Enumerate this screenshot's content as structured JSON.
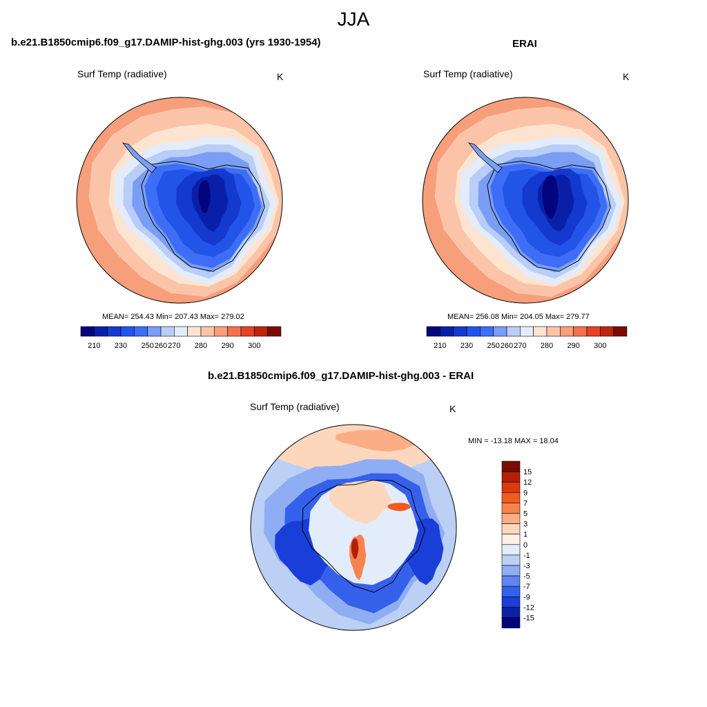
{
  "figure": {
    "season": "JJA"
  },
  "panels": {
    "model": {
      "title": "b.e21.B1850cmip6.f09_g17.DAMIP-hist-ghg.003 (yrs 1930-1954)",
      "variable": "Surf Temp (radiative)",
      "units": "K",
      "stats": "MEAN= 254.43  Min= 207.43  Max= 279.02"
    },
    "obs": {
      "title": "ERAI",
      "variable": "Surf Temp (radiative)",
      "units": "K",
      "stats": "MEAN= 256.08  Min= 204.05  Max= 279.77"
    },
    "diff": {
      "title": "b.e21.B1850cmip6.f09_g17.DAMIP-hist-ghg.003 - ERAI",
      "variable": "Surf Temp (radiative)",
      "units": "K",
      "stats": "MIN = -13.18 MAX =  18.04"
    }
  },
  "colorbars": {
    "absolute": {
      "labels": [
        "210",
        "230",
        "250",
        "260",
        "270",
        "280",
        "290",
        "300"
      ],
      "colors": [
        "#04047f",
        "#0a1fa8",
        "#1339cf",
        "#2254e8",
        "#3e6ef5",
        "#7a9ef5",
        "#b8cdf7",
        "#e3ecfb",
        "#fce4d0",
        "#fbc4a8",
        "#f79e7b",
        "#f2714e",
        "#e34324",
        "#bd2410",
        "#7c0a04"
      ]
    },
    "difference": {
      "labels": [
        "15",
        "12",
        "9",
        "7",
        "5",
        "3",
        "1",
        "0",
        "-1",
        "-3",
        "-5",
        "-7",
        "-9",
        "-12",
        "-15"
      ],
      "colors": [
        "#7c0a04",
        "#b32008",
        "#db3a10",
        "#f25a1e",
        "#f7844c",
        "#fbad85",
        "#fdd7bd",
        "#fdf0e6",
        "#e3ecfb",
        "#bccff5",
        "#8fadf2",
        "#5f85ef",
        "#3560ea",
        "#1a3fd8",
        "#0a22a8",
        "#03047c"
      ]
    }
  },
  "palette": {
    "land_outline": "#000000",
    "panel_border": "#000000"
  }
}
